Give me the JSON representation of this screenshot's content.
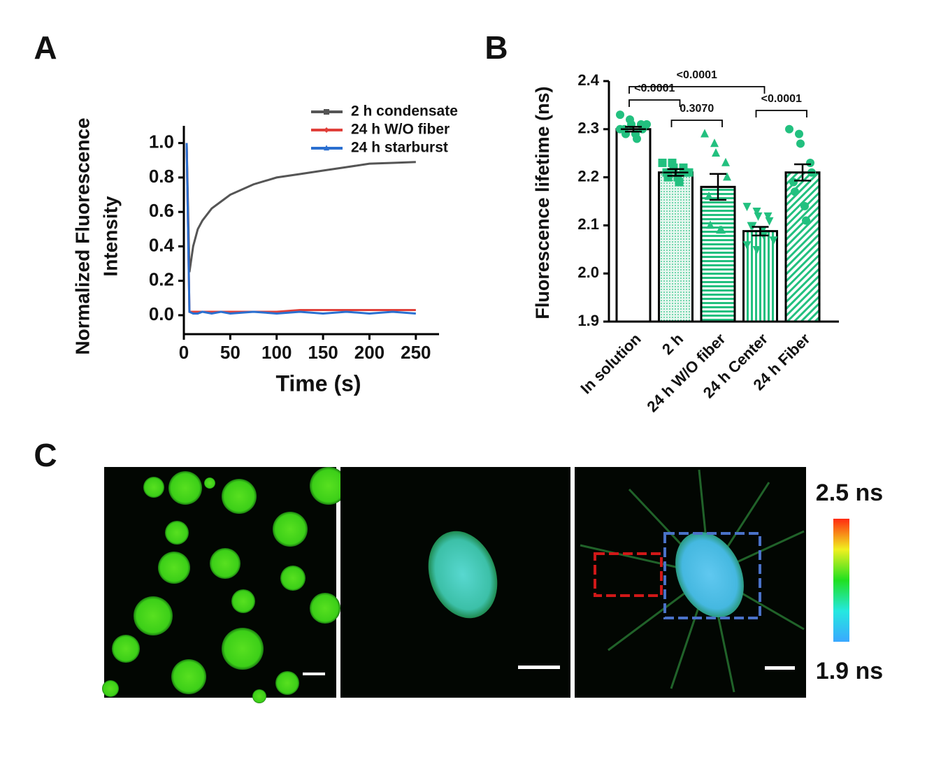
{
  "panels": [
    "A",
    "B",
    "C"
  ],
  "chart_data": [
    {
      "type": "line",
      "xlabel": "Time (s)",
      "ylabel": [
        "Normalized Fluorescence",
        "Intensity"
      ],
      "x": [
        3,
        6,
        10,
        15,
        20,
        30,
        40,
        50,
        75,
        100,
        125,
        150,
        175,
        200,
        225,
        250
      ],
      "series": [
        {
          "name": "2 h condensate",
          "color": "#555555",
          "marker": "square",
          "values": [
            1.0,
            0.25,
            0.4,
            0.5,
            0.55,
            0.62,
            0.66,
            0.7,
            0.76,
            0.8,
            0.82,
            0.84,
            0.86,
            0.88,
            0.885,
            0.89
          ]
        },
        {
          "name": "24 h W/O fiber",
          "color": "#e0403a",
          "marker": "diamond",
          "values": [
            1.0,
            0.02,
            0.02,
            0.02,
            0.02,
            0.02,
            0.02,
            0.02,
            0.02,
            0.02,
            0.03,
            0.03,
            0.03,
            0.03,
            0.03,
            0.03
          ]
        },
        {
          "name": "24 h starburst",
          "color": "#2a6fd0",
          "marker": "triangle",
          "values": [
            1.0,
            0.02,
            0.01,
            0.01,
            0.02,
            0.01,
            0.02,
            0.01,
            0.02,
            0.01,
            0.02,
            0.01,
            0.02,
            0.01,
            0.02,
            0.01
          ]
        }
      ],
      "xlim": [
        0,
        275
      ],
      "xticks": [
        0,
        50,
        100,
        150,
        200,
        250
      ],
      "ylim": [
        -0.11,
        1.1
      ],
      "yticks": [
        {
          "value": 0,
          "label": "0.0"
        },
        0.2,
        0.4,
        0.6,
        0.8,
        {
          "value": 1,
          "label": "1.0"
        }
      ]
    },
    {
      "type": "bar",
      "ylabel": "Fluorescence lifetime (ns)",
      "categories": [
        "In solution",
        "2 h",
        "24 h W/O fiber",
        "24 h Center",
        "24 h Fiber"
      ],
      "values": [
        2.3,
        2.21,
        2.18,
        2.088,
        2.21
      ],
      "errors": [
        0.005,
        0.007,
        0.027,
        0.009,
        0.017
      ],
      "color": "#22c07f",
      "patterns": [
        "none",
        "dots",
        "horizontal",
        "vertical",
        "diagonal"
      ],
      "markers": [
        "circle",
        "square",
        "triangle",
        "triangle-down",
        "circle"
      ],
      "points": [
        [
          2.33,
          2.32,
          2.31,
          2.31,
          2.3,
          2.3,
          2.29,
          2.29,
          2.28,
          2.31,
          2.3
        ],
        [
          2.23,
          2.23,
          2.22,
          2.22,
          2.21,
          2.21,
          2.2,
          2.2,
          2.19,
          2.21
        ],
        [
          2.29,
          2.27,
          2.25,
          2.23,
          2.2,
          2.16,
          2.1,
          2.09,
          2.09
        ],
        [
          2.14,
          2.13,
          2.12,
          2.12,
          2.11,
          2.1,
          2.1,
          2.09,
          2.08,
          2.07,
          2.06,
          2.05
        ],
        [
          2.3,
          2.29,
          2.27,
          2.23,
          2.21,
          2.19,
          2.17,
          2.14,
          2.11
        ]
      ],
      "comparisons": [
        {
          "pair": [
            0,
            1
          ],
          "label": "<0.0001"
        },
        {
          "pair": [
            1,
            2
          ],
          "label": "0.3070"
        },
        {
          "pair": [
            0,
            3
          ],
          "label": "<0.0001"
        },
        {
          "pair": [
            3,
            4
          ],
          "label": "<0.0001"
        }
      ],
      "ylim": [
        1.9,
        2.4
      ],
      "yticks": [
        1.9,
        {
          "value": 2,
          "label": "2.0"
        },
        2.1,
        2.2,
        2.3,
        2.4
      ]
    }
  ],
  "colorbar": {
    "max_label": "2.5 ns",
    "min_label": "1.9 ns"
  }
}
